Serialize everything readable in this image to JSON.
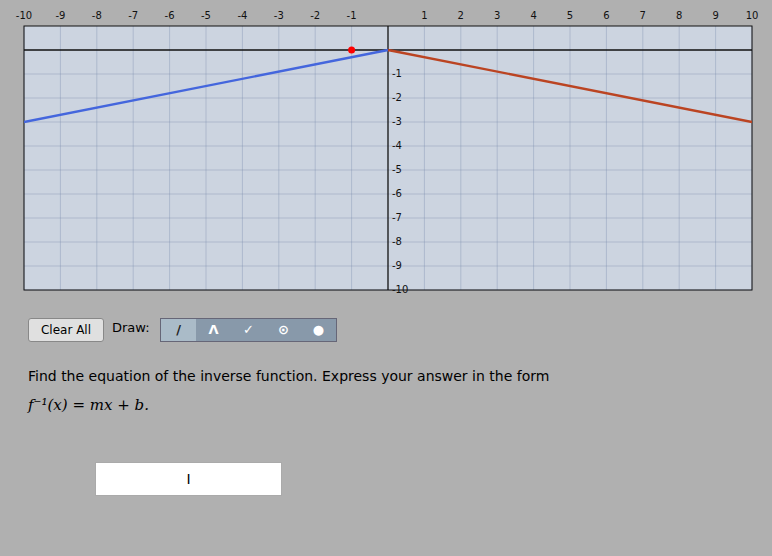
{
  "chart_data": {
    "type": "line",
    "xlim": [
      -10,
      10
    ],
    "ylim": [
      -10,
      1
    ],
    "xticks": [
      -10,
      -9,
      -8,
      -7,
      -6,
      -5,
      -4,
      -3,
      -2,
      -1,
      1,
      2,
      3,
      4,
      5,
      6,
      7,
      8,
      9,
      10
    ],
    "yticks": [
      -10,
      -9,
      -8,
      -7,
      -6,
      -5,
      -4,
      -3,
      -2,
      -1
    ],
    "grid": true,
    "series": [
      {
        "color": "#4466dd",
        "x": [
          -10,
          0
        ],
        "values": [
          -3,
          0
        ]
      },
      {
        "color": "#bb4422",
        "x": [
          0,
          10
        ],
        "values": [
          0,
          -3
        ]
      },
      {
        "type": "scatter",
        "color": "red",
        "x": [
          -1
        ],
        "values": [
          0
        ]
      }
    ],
    "annotations": [
      "Clear All",
      "Draw:",
      "/",
      "Λ",
      "✓",
      "⊙",
      "●",
      "Find the equation of the inverse function. Express your answer in the form",
      "f⁻¹(x) = mx + b.",
      "I"
    ]
  }
}
